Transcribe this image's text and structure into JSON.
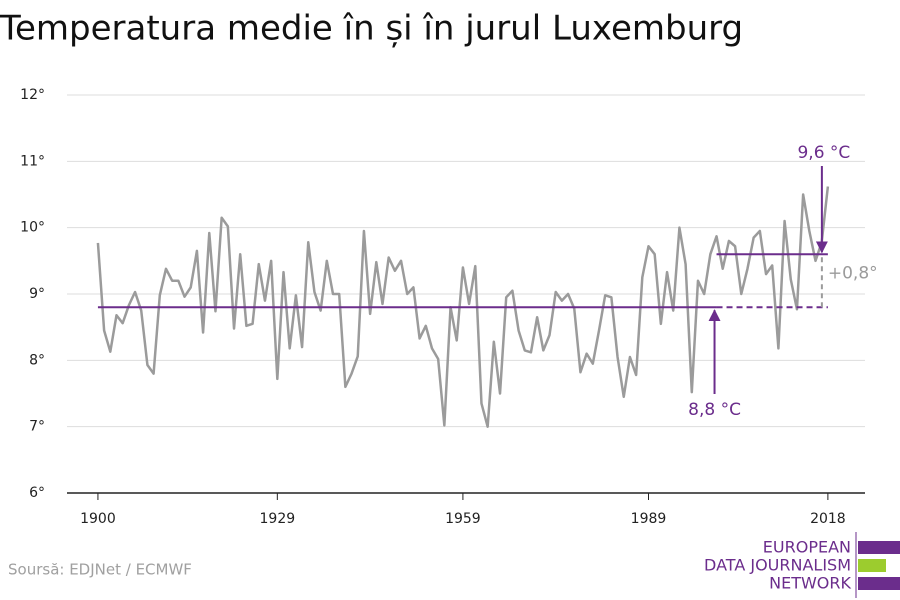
{
  "chart_data": {
    "type": "line",
    "title": "Temperatura medie în și în jurul Luxemburg",
    "x": [
      1900,
      1901,
      1902,
      1903,
      1904,
      1905,
      1906,
      1907,
      1908,
      1909,
      1910,
      1911,
      1912,
      1913,
      1914,
      1915,
      1916,
      1917,
      1918,
      1919,
      1920,
      1921,
      1922,
      1923,
      1924,
      1925,
      1926,
      1927,
      1928,
      1929,
      1930,
      1931,
      1932,
      1933,
      1934,
      1935,
      1936,
      1937,
      1938,
      1939,
      1940,
      1941,
      1942,
      1943,
      1944,
      1945,
      1946,
      1947,
      1948,
      1949,
      1950,
      1951,
      1952,
      1953,
      1954,
      1955,
      1956,
      1957,
      1958,
      1959,
      1960,
      1961,
      1962,
      1963,
      1964,
      1965,
      1966,
      1967,
      1968,
      1969,
      1970,
      1971,
      1972,
      1973,
      1974,
      1975,
      1976,
      1977,
      1978,
      1979,
      1980,
      1981,
      1982,
      1983,
      1984,
      1985,
      1986,
      1987,
      1988,
      1989,
      1990,
      1991,
      1992,
      1993,
      1994,
      1995,
      1996,
      1997,
      1998,
      1999,
      2000,
      2001,
      2002,
      2003,
      2004,
      2005,
      2006,
      2007,
      2008,
      2009,
      2010,
      2011,
      2012,
      2013,
      2014,
      2015,
      2016,
      2017,
      2018
    ],
    "series": [
      {
        "color": "#9b9b9b",
        "values": [
          9.77,
          8.45,
          8.13,
          8.68,
          8.56,
          8.83,
          9.03,
          8.75,
          7.93,
          7.8,
          8.98,
          9.38,
          9.2,
          9.2,
          8.96,
          9.1,
          9.65,
          8.42,
          9.92,
          8.74,
          10.15,
          10.02,
          8.48,
          9.6,
          8.52,
          8.55,
          9.45,
          8.9,
          9.5,
          7.72,
          9.33,
          8.18,
          8.98,
          8.2,
          9.78,
          9.03,
          8.75,
          9.5,
          9.0,
          9.0,
          7.6,
          7.8,
          8.06,
          9.95,
          8.7,
          9.48,
          8.85,
          9.55,
          9.35,
          9.5,
          9.0,
          9.1,
          8.33,
          8.52,
          8.18,
          8.02,
          7.02,
          8.8,
          8.3,
          9.4,
          8.85,
          9.42,
          7.35,
          7.0,
          8.28,
          7.5,
          8.95,
          9.05,
          8.45,
          8.15,
          8.12,
          8.65,
          8.15,
          8.38,
          9.03,
          8.9,
          9.0,
          8.78,
          7.82,
          8.1,
          7.95,
          8.45,
          8.98,
          8.95,
          8.05,
          7.45,
          8.05,
          7.78,
          9.25,
          9.72,
          9.6,
          8.55,
          9.33,
          8.75,
          10.0,
          9.45,
          7.52,
          9.2,
          9.0,
          9.6,
          9.87,
          9.38,
          9.8,
          9.72,
          9.0,
          9.38,
          9.85,
          9.95,
          9.3,
          9.43,
          8.18,
          10.1,
          9.22,
          8.77,
          10.5,
          9.95,
          9.5,
          9.78,
          10.62
        ]
      }
    ],
    "reference_lines": [
      {
        "label": "8,8 °C",
        "value": 8.8,
        "from": 1900,
        "to": 2000,
        "color": "#6b2d8c"
      },
      {
        "label": "9,6 °C",
        "value": 9.6,
        "from": 2000,
        "to": 2018,
        "color": "#6b2d8c"
      }
    ],
    "difference": {
      "label": "+0,8°",
      "value": 0.8,
      "color": "#9b9b9b"
    },
    "xlim": [
      1895,
      2024
    ],
    "xticks": [
      1900,
      1929,
      1959,
      1989,
      2018
    ],
    "ylim": [
      6,
      12
    ],
    "yticks": [
      {
        "value": 6,
        "label": "6°"
      },
      {
        "value": 7,
        "label": "7°"
      },
      {
        "value": 8,
        "label": "8°"
      },
      {
        "value": 9,
        "label": "9°"
      },
      {
        "value": 10,
        "label": "10°"
      },
      {
        "value": 11,
        "label": "11°"
      },
      {
        "value": 12,
        "label": "12°"
      }
    ],
    "grid": true
  },
  "footer": {
    "source": "Soursă: EDJNet / ECMWF",
    "logo": [
      "EUROPEAN",
      "DATA JOURNALISM",
      "NETWORK"
    ]
  }
}
